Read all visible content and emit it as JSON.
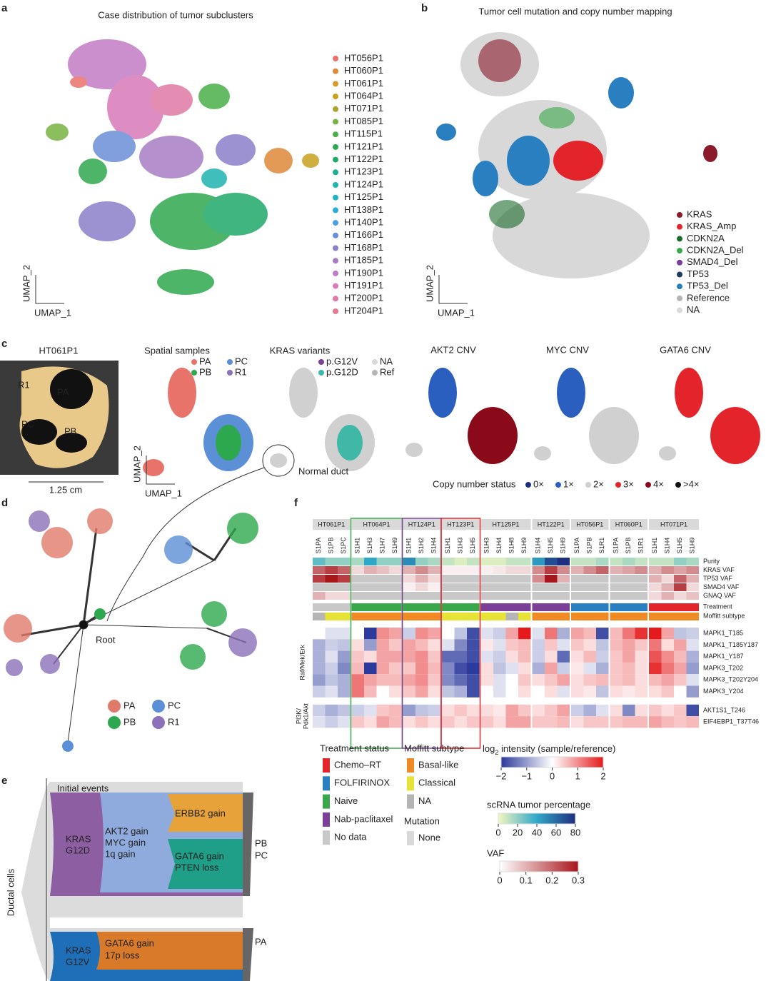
{
  "a": {
    "label": "a",
    "title": "Case distribution of tumor subclusters",
    "axis_x": "UMAP_1",
    "axis_y": "UMAP_2",
    "legend": [
      {
        "name": "HT056P1",
        "color": "#e8736a"
      },
      {
        "name": "HT060P1",
        "color": "#e0893a"
      },
      {
        "name": "HT061P1",
        "color": "#d99a2b"
      },
      {
        "name": "HT064P1",
        "color": "#c7a21f"
      },
      {
        "name": "HT071P1",
        "color": "#a9a32a"
      },
      {
        "name": "HT085P1",
        "color": "#7ab342"
      },
      {
        "name": "HT115P1",
        "color": "#4bb04a"
      },
      {
        "name": "HT121P1",
        "color": "#2ea84e"
      },
      {
        "name": "HT122P1",
        "color": "#1fa96a"
      },
      {
        "name": "HT123P1",
        "color": "#1fae90"
      },
      {
        "name": "HT124P1",
        "color": "#1fb3b0"
      },
      {
        "name": "HT125P1",
        "color": "#22b3c7"
      },
      {
        "name": "HT138P1",
        "color": "#2aafd8"
      },
      {
        "name": "HT140P1",
        "color": "#4aa0db"
      },
      {
        "name": "HT166P1",
        "color": "#6b8fd6"
      },
      {
        "name": "HT168P1",
        "color": "#8c80c9"
      },
      {
        "name": "HT185P1",
        "color": "#a77dc4"
      },
      {
        "name": "HT190P1",
        "color": "#c27cc6"
      },
      {
        "name": "HT191P1",
        "color": "#d87ab8"
      },
      {
        "name": "HT200P1",
        "color": "#e07aa5"
      },
      {
        "name": "HT204P1",
        "color": "#e67896"
      }
    ]
  },
  "b": {
    "label": "b",
    "title": "Tumor cell mutation and copy number mapping",
    "axis_x": "UMAP_1",
    "axis_y": "UMAP_2",
    "legend": [
      {
        "name": "KRAS",
        "color": "#8b1a2b"
      },
      {
        "name": "KRAS_Amp",
        "color": "#e3242b"
      },
      {
        "name": "CDKN2A",
        "color": "#1a6b2a"
      },
      {
        "name": "CDKN2A_Del",
        "color": "#3aa84a"
      },
      {
        "name": "SMAD4_Del",
        "color": "#7b3f98"
      },
      {
        "name": "TP53",
        "color": "#1f3b5c"
      },
      {
        "name": "TP53_Del",
        "color": "#2a7fc1"
      },
      {
        "name": "Reference",
        "color": "#b5b5b5"
      },
      {
        "name": "NA",
        "color": "#d9d9d9"
      }
    ]
  },
  "c": {
    "label": "c",
    "sample": "HT061P1",
    "scale_bar": "1.25 cm",
    "photo_labels": [
      "R1",
      "PA",
      "PC",
      "PB"
    ],
    "spatial_title": "Spatial samples",
    "spatial_legend": [
      {
        "name": "PA",
        "color": "#e8736a"
      },
      {
        "name": "PC",
        "color": "#5b8fd6"
      },
      {
        "name": "PB",
        "color": "#2ea84e"
      },
      {
        "name": "R1",
        "color": "#8c70b8"
      }
    ],
    "kras_title": "KRAS variants",
    "kras_legend": [
      {
        "name": "p.G12V",
        "color": "#7b3f98"
      },
      {
        "name": "NA",
        "color": "#d9d9d9"
      },
      {
        "name": "p.G12D",
        "color": "#3fb8a8"
      },
      {
        "name": "Ref",
        "color": "#b5b5b5"
      }
    ],
    "normal_duct": "Normal duct",
    "axis_x": "UMAP_1",
    "axis_y": "UMAP_2",
    "cnv_titles": [
      "AKT2 CNV",
      "MYC CNV",
      "GATA6 CNV"
    ],
    "cnv_legend_title": "Copy number status",
    "cnv_legend": [
      {
        "name": "0×",
        "color": "#1f2f80"
      },
      {
        "name": "1×",
        "color": "#2a5fc0"
      },
      {
        "name": "2×",
        "color": "#d0d0d0"
      },
      {
        "name": "3×",
        "color": "#e3242b"
      },
      {
        "name": "4×",
        "color": "#8b0a1a"
      },
      {
        "name": ">4×",
        "color": "#111111"
      }
    ]
  },
  "d": {
    "label": "d",
    "root": "Root",
    "legend": [
      {
        "name": "PA",
        "color": "#e07a6a"
      },
      {
        "name": "PC",
        "color": "#5b8fd6"
      },
      {
        "name": "PB",
        "color": "#2ea84e"
      },
      {
        "name": "R1",
        "color": "#8c70b8"
      }
    ]
  },
  "e": {
    "label": "e",
    "initial": "Initial events",
    "ductal": "Ductal cells",
    "kras1": [
      "KRAS",
      "G12D"
    ],
    "gain1": [
      "AKT2 gain",
      "MYC gain",
      "1q gain"
    ],
    "erbb2": "ERBB2 gain",
    "gata6": [
      "GATA6 gain",
      "PTEN loss"
    ],
    "out1": [
      "PB",
      "PC"
    ],
    "kras2": [
      "KRAS",
      "G12V"
    ],
    "gain2": [
      "GATA6 gain",
      "17p loss"
    ],
    "out2": "PA"
  },
  "f": {
    "label": "f",
    "groups": [
      {
        "name": "HT061P1",
        "samples": [
          "S1PA",
          "S1PB",
          "S1PC"
        ],
        "treatment": "No data"
      },
      {
        "name": "HT064P1",
        "samples": [
          "S1H1",
          "S1H3",
          "S1H7",
          "S1H9"
        ],
        "treatment": "Naive",
        "border": "#3aa84a"
      },
      {
        "name": "HT124P1",
        "samples": [
          "S1H1",
          "S1H2",
          "S1H4"
        ],
        "treatment": "Naive",
        "border": "#7b3f98"
      },
      {
        "name": "HT123P1",
        "samples": [
          "S1H1",
          "S1H3",
          "S1H5"
        ],
        "treatment": "Naive",
        "border": "#e3242b"
      },
      {
        "name": "HT125P1",
        "samples": [
          "S1H3",
          "S1H4",
          "S1H8",
          "S1H9"
        ],
        "treatment": "Nab-paclitaxel"
      },
      {
        "name": "HT122P1",
        "samples": [
          "S1H4",
          "S1H5",
          "S1H9"
        ],
        "treatment": "Nab-paclitaxel"
      },
      {
        "name": "HT056P1",
        "samples": [
          "S1PA",
          "S1PB",
          "S1R1"
        ],
        "treatment": "FOLFIRINOX"
      },
      {
        "name": "HT060P1",
        "samples": [
          "S1PA",
          "S1PB",
          "S1R1"
        ],
        "treatment": "FOLFIRINOX"
      },
      {
        "name": "HT071P1",
        "samples": [
          "S1H1",
          "S1H4",
          "S1H5",
          "S1H9"
        ],
        "treatment": "Chemo–RT"
      }
    ],
    "purity": {
      "name": "Purity",
      "values": [
        30,
        20,
        20,
        15,
        40,
        20,
        20,
        50,
        20,
        15,
        10,
        5,
        10,
        5,
        5,
        10,
        10,
        45,
        70,
        80,
        10,
        10,
        15,
        10,
        15,
        10,
        10,
        10,
        20,
        15
      ]
    },
    "vaf_rows": [
      {
        "name": "KRAS VAF",
        "values": [
          0.2,
          0.25,
          0.2,
          0.05,
          0.1,
          0.08,
          0.05,
          0.1,
          0.15,
          0.1,
          0.02,
          0.02,
          0.02,
          0.02,
          0.03,
          0.05,
          0.05,
          0.15,
          0.25,
          0.15,
          0.1,
          0.15,
          0.2,
          0.1,
          0.12,
          0.15,
          0.1,
          0.15,
          0.12,
          0.15
        ]
      },
      {
        "name": "TP53 VAF",
        "values": [
          0.25,
          0.3,
          0.25,
          null,
          null,
          null,
          null,
          0.05,
          0.1,
          0.05,
          null,
          null,
          null,
          null,
          null,
          null,
          null,
          0.15,
          0.3,
          0.1,
          null,
          null,
          null,
          null,
          null,
          null,
          0.1,
          0.05,
          0.2,
          0.1
        ]
      },
      {
        "name": "SMAD4 VAF",
        "values": [
          null,
          null,
          null,
          null,
          null,
          null,
          null,
          0.02,
          0.05,
          0.02,
          null,
          null,
          null,
          null,
          null,
          null,
          null,
          null,
          null,
          null,
          null,
          null,
          null,
          null,
          null,
          null,
          0.05,
          0.1,
          0.25,
          0.05
        ]
      },
      {
        "name": "GNAQ VAF",
        "values": [
          0.1,
          0.05,
          0.05,
          null,
          null,
          null,
          null,
          null,
          null,
          null,
          null,
          null,
          null,
          null,
          null,
          null,
          null,
          null,
          null,
          null,
          null,
          null,
          null,
          null,
          null,
          null,
          0.05,
          0.1,
          0.05,
          0.08
        ]
      }
    ],
    "treatment_row": "Treatment",
    "moffitt_row": {
      "name": "Moffitt subtype",
      "values": [
        "NA",
        "Classical",
        "Classical",
        "Basal-like",
        "Basal-like",
        "Basal-like",
        "Basal-like",
        "Basal-like",
        "Basal-like",
        "Basal-like",
        "Classical",
        "Classical",
        "Classical",
        "Classical",
        "Classical",
        "NA",
        "Classical",
        "Basal-like",
        "Basal-like",
        "Basal-like",
        "Basal-like",
        "Basal-like",
        "Basal-like",
        "Basal-like",
        "Basal-like",
        "Basal-like",
        "Basal-like",
        "Basal-like",
        "Basal-like",
        "Basal-like"
      ]
    },
    "pathways": [
      {
        "name": [
          "Raf/Mek/Erk"
        ],
        "rows": [
          {
            "name": "MAPK1_T185",
            "values": [
              0,
              -0.3,
              -0.3,
              0,
              -2,
              1,
              0.8,
              -0.5,
              1,
              0.8,
              0,
              -0.6,
              -1.8,
              -0.3,
              -0.5,
              0.8,
              2,
              -0.3,
              1.2,
              -0.8,
              0.8,
              0.6,
              -1.8,
              0.6,
              1.2,
              1.8,
              2,
              0.8,
              -0.6,
              -0.5
            ]
          },
          {
            "name": "MAPK1_T185Y187",
            "values": [
              -0.8,
              -0.5,
              -0.6,
              0.3,
              -1,
              0.8,
              0.5,
              0.8,
              0.6,
              0.3,
              -0.3,
              -1.2,
              -1.8,
              0.2,
              -0.3,
              0.5,
              0.6,
              -0.5,
              0.5,
              -0.3,
              0.5,
              0.3,
              -0.6,
              0.6,
              0.8,
              0.5,
              1.2,
              0.3,
              0.8,
              -0.3
            ]
          },
          {
            "name": "MAPK1_Y187",
            "values": [
              -0.8,
              -0.3,
              -1,
              0.5,
              0.3,
              0.8,
              0.8,
              0.8,
              1,
              0.5,
              -1.5,
              -1.5,
              -1.8,
              -0.3,
              -0.5,
              0.3,
              0.6,
              -0.5,
              0.3,
              -1.5,
              0.3,
              0.6,
              -0.5,
              0.5,
              0.8,
              0.3,
              1.5,
              1,
              0.6,
              -0.8
            ]
          },
          {
            "name": "MAPK3_T202",
            "values": [
              -0.8,
              -0.5,
              -1.2,
              0.6,
              -2,
              0.8,
              0.5,
              0.5,
              1,
              0.6,
              -1.2,
              -1.8,
              -2,
              0.3,
              -0.6,
              -0.3,
              0.3,
              -0.8,
              0.8,
              -0.5,
              0.2,
              -0.3,
              -0.8,
              0.5,
              0.6,
              0.3,
              1.8,
              1.2,
              0.8,
              -1
            ]
          },
          {
            "name": "MAPK3_T202Y204",
            "values": [
              -1,
              -0.6,
              -0.8,
              1.2,
              0.8,
              0.6,
              0.6,
              0.8,
              1,
              0.5,
              -1.2,
              -1.5,
              -1.8,
              0.3,
              -0.3,
              0,
              0.5,
              0.3,
              0.5,
              0.8,
              0.3,
              0.5,
              0.6,
              0.5,
              0.6,
              0.3,
              0.6,
              0.8,
              0.5,
              -0.3
            ]
          },
          {
            "name": "MAPK3_Y204",
            "values": [
              -0.5,
              -0.3,
              -0.8,
              1.2,
              0.6,
              0,
              0.3,
              0.5,
              0.8,
              0.3,
              -0.6,
              -0.8,
              -1.8,
              0,
              -0.3,
              0,
              0.3,
              0,
              0.3,
              -0.3,
              0.3,
              0.2,
              -0.6,
              0.3,
              0.2,
              0.3,
              0.3,
              0.5,
              0,
              -1
            ]
          }
        ]
      },
      {
        "name": [
          "PI3K/",
          "Pdk1/Akt"
        ],
        "rows": [
          {
            "name": "AKT1S1_T246",
            "values": [
              -0.5,
              -0.8,
              -0.6,
              -0.5,
              -0.3,
              0.5,
              0.6,
              -1,
              -0.6,
              -0.5,
              0.3,
              0.5,
              0.3,
              0.3,
              0.2,
              0.8,
              0.5,
              0.3,
              0.5,
              0.8,
              -0.5,
              -0.8,
              -0.3,
              0.3,
              -1.2,
              0.3,
              0.5,
              0.3,
              0.5,
              -1.8
            ]
          },
          {
            "name": "EIF4EBP1_T37T46",
            "values": [
              -0.3,
              -0.5,
              -0.3,
              0.5,
              0.3,
              0.8,
              0.6,
              0.3,
              0.5,
              0.3,
              0.5,
              0.3,
              0.5,
              0.5,
              0.3,
              0.8,
              0.8,
              0.5,
              0.5,
              0.6,
              0.3,
              0.5,
              0.5,
              0.5,
              0.6,
              0.6,
              0.8,
              0.6,
              0.5,
              0.6
            ]
          }
        ]
      }
    ],
    "treatment_legend": {
      "title": "Treatment status",
      "items": [
        {
          "name": "Chemo–RT",
          "color": "#e3242b"
        },
        {
          "name": "FOLFIRINOX",
          "color": "#2a7fc1"
        },
        {
          "name": "Naive",
          "color": "#3aa84a"
        },
        {
          "name": "Nab-paclitaxel",
          "color": "#7b3f98"
        },
        {
          "name": "No data",
          "color": "#c8c8c8"
        }
      ]
    },
    "moffitt_legend": {
      "title": "Moffitt subtype",
      "items": [
        {
          "name": "Basal-like",
          "color": "#f08a24"
        },
        {
          "name": "Classical",
          "color": "#e6e336"
        },
        {
          "name": "NA",
          "color": "#b5b5b5"
        }
      ]
    },
    "mutation_legend": {
      "title": "Mutation",
      "items": [
        {
          "name": "None",
          "color": "#d9d9d9"
        }
      ]
    },
    "intensity_scale": {
      "title": [
        "log",
        "2",
        " intensity (sample/reference)"
      ],
      "lim": [
        -2,
        2
      ],
      "ticks": [
        {
          "value": -2,
          "label": "−2"
        },
        {
          "value": -1,
          "label": "−1"
        },
        0,
        1,
        2
      ],
      "colors": [
        "#2b3a9c",
        "#ffffff",
        "#e41a1c"
      ]
    },
    "purity_scale": {
      "title": "scRNA tumor percentage",
      "lim": [
        0,
        80
      ],
      "ticks": [
        0,
        20,
        40,
        60,
        80
      ],
      "colors": [
        "#f4f7c0",
        "#2fa8c8",
        "#1f2f80"
      ]
    },
    "vaf_scale": {
      "title": "VAF",
      "lim": [
        0,
        0.3
      ],
      "ticks": [
        0,
        0.1,
        0.2,
        0.3
      ],
      "colors": [
        "#ffffff",
        "#a8161c"
      ]
    }
  }
}
